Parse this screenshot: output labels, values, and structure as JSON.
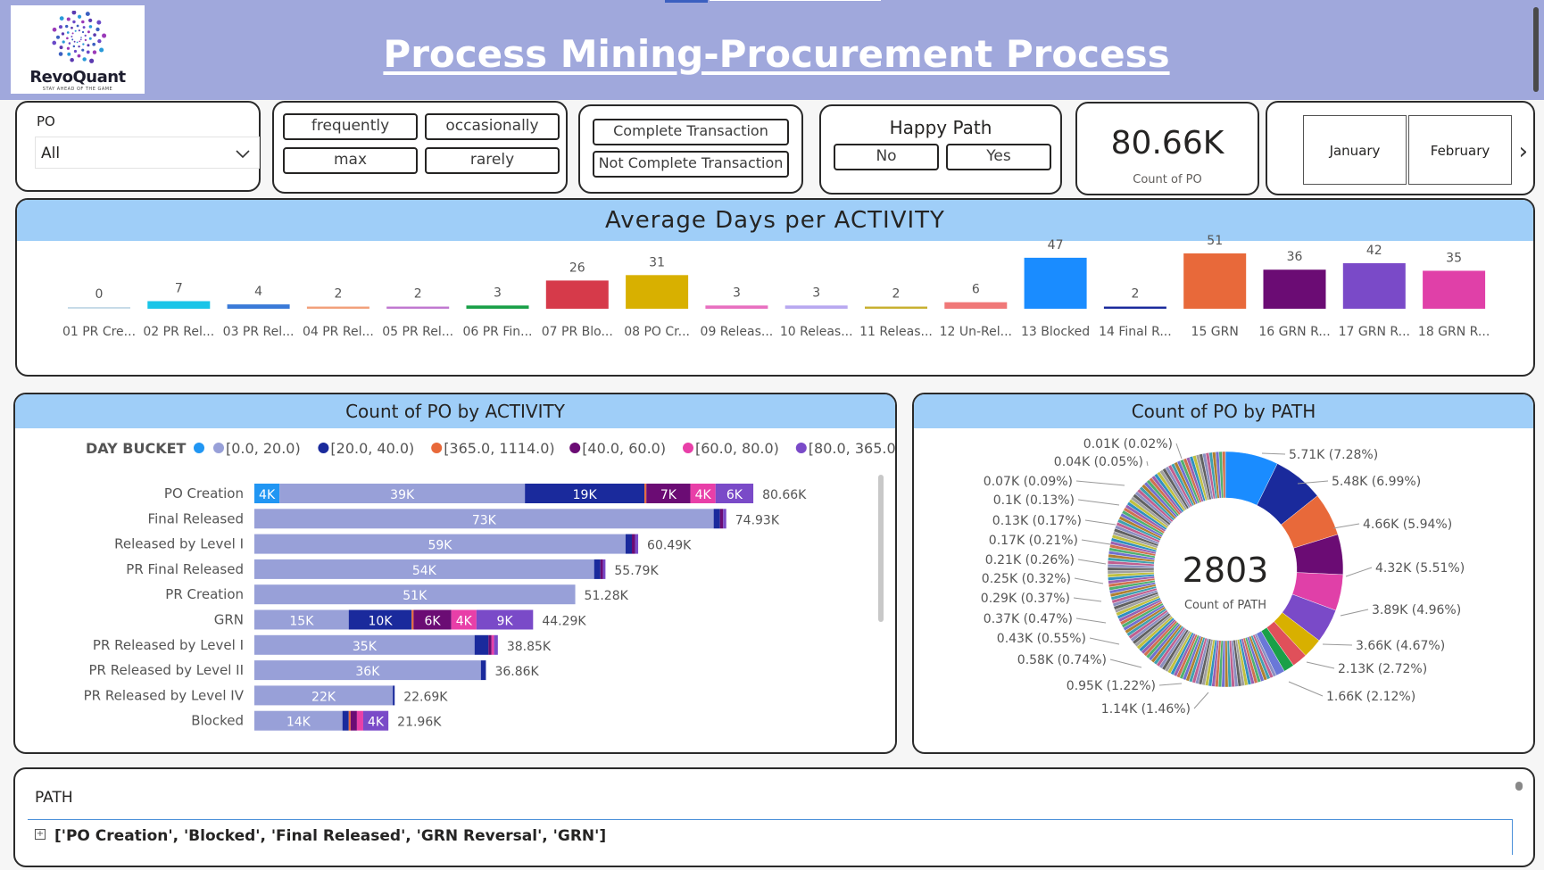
{
  "header": {
    "title": "Process Mining-Procurement Process",
    "logo_name": "RevoQuant",
    "logo_tagline": "STAY AHEAD OF THE GAME"
  },
  "slicers": {
    "po": {
      "label": "PO",
      "selected": "All"
    },
    "frequency": [
      "frequently",
      "occasionally",
      "max",
      "rarely"
    ],
    "transaction": [
      "Complete Transaction",
      "Not Complete Transaction"
    ],
    "happy_path": {
      "title": "Happy Path",
      "options": [
        "No",
        "Yes"
      ]
    },
    "months": [
      "January",
      "February"
    ]
  },
  "kpi": {
    "value": "80.66K",
    "label": "Count of PO"
  },
  "colors": {
    "header_bg": "#a0a8dc",
    "panel_head": "#9fcef8",
    "b0": "#2196f3",
    "b1": "#98a0d8",
    "b2": "#1a2a9c",
    "b3": "#e8693a",
    "b4": "#6b0c74",
    "b5": "#e83fa8",
    "b6": "#7a4ac8"
  },
  "chart_data": [
    {
      "type": "bar",
      "title": "Average Days per ACTIVITY",
      "categories": [
        "01 PR Cre...",
        "02 PR Rel...",
        "03 PR Rel...",
        "04 PR Rel...",
        "05 PR Rel...",
        "06 PR Fin...",
        "07 PR Blo...",
        "08 PO Cr...",
        "09 Releas...",
        "10 Releas...",
        "11 Releas...",
        "12 Un-Rel...",
        "13 Blocked",
        "14 Final R...",
        "15 GRN",
        "16 GRN R...",
        "17 GRN R...",
        "18 GRN R..."
      ],
      "values": [
        0,
        7,
        4,
        2,
        2,
        3,
        26,
        31,
        3,
        3,
        2,
        6,
        47,
        2,
        51,
        36,
        42,
        35
      ],
      "bar_colors": [
        "#c7dbe8",
        "#19c5e8",
        "#3a7ad8",
        "#f2a07a",
        "#c078d0",
        "#1aa048",
        "#d63a4a",
        "#d8b000",
        "#e870c0",
        "#b8a8f0",
        "#c8b030",
        "#f07878",
        "#1a8cff",
        "#1a2a9c",
        "#e8693a",
        "#6b0c74",
        "#7a4ac8",
        "#e040a8"
      ]
    },
    {
      "type": "bar",
      "orientation": "horizontal-stacked",
      "title": "Count of PO by ACTIVITY",
      "legend_title": "DAY BUCKET",
      "legend": [
        "[0.0, 20.0)",
        "[20.0, 40.0)",
        "[365.0, 1114.0)",
        "[40.0, 60.0)",
        "[60.0, 80.0)",
        "[80.0, 365.0)"
      ],
      "categories": [
        "PO Creation",
        "Final Released",
        "Released by Level I",
        "PR Final Released",
        "PR Creation",
        "GRN",
        "PR Released by Level I",
        "PR Released by Level II",
        "PR Released by Level IV",
        "Blocked"
      ],
      "totals": [
        "80.66K",
        "74.93K",
        "60.49K",
        "55.79K",
        "51.28K",
        "44.29K",
        "38.85K",
        "36.86K",
        "22.69K",
        "21.96K"
      ],
      "rows": [
        [
          {
            "v": 4,
            "c": "b0",
            "l": "4K"
          },
          {
            "v": 39,
            "c": "b1",
            "l": "39K"
          },
          {
            "v": 19,
            "c": "b2",
            "l": "19K"
          },
          {
            "v": 0.3,
            "c": "b3",
            "l": ""
          },
          {
            "v": 7,
            "c": "b4",
            "l": "7K"
          },
          {
            "v": 4,
            "c": "b5",
            "l": "4K"
          },
          {
            "v": 6,
            "c": "b6",
            "l": "6K"
          }
        ],
        [
          {
            "v": 73,
            "c": "b1",
            "l": "73K"
          },
          {
            "v": 1,
            "c": "b2",
            "l": ""
          },
          {
            "v": 0.5,
            "c": "b4",
            "l": ""
          },
          {
            "v": 0.5,
            "c": "b6",
            "l": ""
          }
        ],
        [
          {
            "v": 59,
            "c": "b1",
            "l": "59K"
          },
          {
            "v": 1,
            "c": "b2",
            "l": ""
          },
          {
            "v": 0.5,
            "c": "b4",
            "l": ""
          },
          {
            "v": 0.5,
            "c": "b6",
            "l": ""
          }
        ],
        [
          {
            "v": 54,
            "c": "b1",
            "l": "54K"
          },
          {
            "v": 1,
            "c": "b2",
            "l": ""
          },
          {
            "v": 0.4,
            "c": "b4",
            "l": ""
          },
          {
            "v": 0.4,
            "c": "b6",
            "l": ""
          }
        ],
        [
          {
            "v": 51,
            "c": "b1",
            "l": "51K"
          }
        ],
        [
          {
            "v": 15,
            "c": "b1",
            "l": "15K"
          },
          {
            "v": 10,
            "c": "b2",
            "l": "10K"
          },
          {
            "v": 0.3,
            "c": "b3",
            "l": ""
          },
          {
            "v": 6,
            "c": "b4",
            "l": "6K"
          },
          {
            "v": 4,
            "c": "b5",
            "l": "4K"
          },
          {
            "v": 9,
            "c": "b6",
            "l": "9K"
          }
        ],
        [
          {
            "v": 35,
            "c": "b1",
            "l": "35K"
          },
          {
            "v": 2.2,
            "c": "b2",
            "l": ""
          },
          {
            "v": 0.5,
            "c": "b4",
            "l": ""
          },
          {
            "v": 0.4,
            "c": "b5",
            "l": ""
          },
          {
            "v": 0.6,
            "c": "b6",
            "l": ""
          }
        ],
        [
          {
            "v": 36,
            "c": "b1",
            "l": "36K"
          },
          {
            "v": 0.8,
            "c": "b2",
            "l": ""
          }
        ],
        [
          {
            "v": 22,
            "c": "b1",
            "l": "22K"
          },
          {
            "v": 0.3,
            "c": "b2",
            "l": ""
          }
        ],
        [
          {
            "v": 14,
            "c": "b1",
            "l": "14K"
          },
          {
            "v": 1,
            "c": "b2",
            "l": ""
          },
          {
            "v": 0.3,
            "c": "b3",
            "l": ""
          },
          {
            "v": 1,
            "c": "b4",
            "l": ""
          },
          {
            "v": 1,
            "c": "b5",
            "l": ""
          },
          {
            "v": 4,
            "c": "b6",
            "l": "4K"
          }
        ]
      ],
      "xlim": [
        0,
        90
      ]
    },
    {
      "type": "pie",
      "donut": true,
      "title": "Count of PO by PATH",
      "center_value": "2803",
      "center_label": "Count of PATH",
      "slices": [
        {
          "label": "5.71K (7.28%)",
          "pct": 7.28,
          "color": "#1a8cff"
        },
        {
          "label": "5.48K (6.99%)",
          "pct": 6.99,
          "color": "#1a2a9c"
        },
        {
          "label": "4.66K (5.94%)",
          "pct": 5.94,
          "color": "#e8693a"
        },
        {
          "label": "4.32K (5.51%)",
          "pct": 5.51,
          "color": "#6b0c74"
        },
        {
          "label": "3.89K (4.96%)",
          "pct": 4.96,
          "color": "#e040a8"
        },
        {
          "label": "3.66K (4.67%)",
          "pct": 4.67,
          "color": "#7a4ac8"
        },
        {
          "label": "2.13K (2.72%)",
          "pct": 2.72,
          "color": "#d8b000"
        },
        {
          "label": "1.66K (2.12%)",
          "pct": 2.12,
          "color": "#e0505a"
        },
        {
          "label": "1.14K (1.46%)",
          "pct": 1.46,
          "color": "#1aa048"
        },
        {
          "label": "0.95K (1.22%)",
          "pct": 1.22,
          "color": "#6a78d8"
        },
        {
          "label": "0.58K (0.74%)",
          "pct": 0.74,
          "color": "#e070c0"
        },
        {
          "label": "0.43K (0.55%)",
          "pct": 0.55,
          "color": "#20c0d0"
        },
        {
          "label": "0.37K (0.47%)",
          "pct": 0.47,
          "color": "#8a3aa0"
        },
        {
          "label": "0.29K (0.37%)",
          "pct": 0.37,
          "color": "#c0a040"
        },
        {
          "label": "0.25K (0.32%)",
          "pct": 0.32,
          "color": "#3060c0"
        },
        {
          "label": "0.21K (0.26%)",
          "pct": 0.26,
          "color": "#d04040"
        },
        {
          "label": "0.17K (0.21%)",
          "pct": 0.21,
          "color": "#40a060"
        },
        {
          "label": "0.13K (0.17%)",
          "pct": 0.17,
          "color": "#9050c0"
        },
        {
          "label": "0.1K (0.13%)",
          "pct": 0.13,
          "color": "#e09040"
        },
        {
          "label": "0.07K (0.09%)",
          "pct": 0.09,
          "color": "#5080e0"
        },
        {
          "label": "0.04K (0.05%)",
          "pct": 0.05,
          "color": "#a0a0a0"
        },
        {
          "label": "0.01K (0.02%)",
          "pct": 0.02,
          "color": "#808080"
        }
      ]
    }
  ],
  "path_table": {
    "label": "PATH",
    "rows": [
      "['PO Creation', 'Blocked', 'Final Released', 'GRN Reversal', 'GRN']"
    ]
  }
}
